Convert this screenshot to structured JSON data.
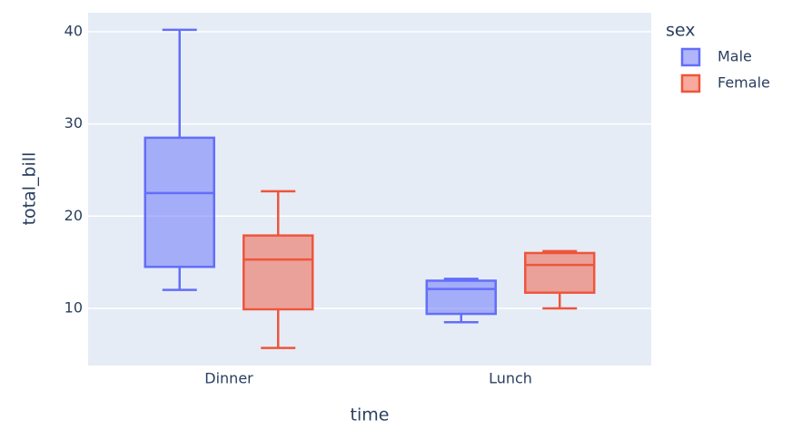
{
  "chart_data": {
    "type": "box",
    "x_label": "time",
    "y_label": "total_bill",
    "categories": [
      "Dinner",
      "Lunch"
    ],
    "legend_title": "sex",
    "series": [
      {
        "name": "Male",
        "color": "#636efa",
        "boxes": [
          {
            "low": 12.0,
            "q1": 14.5,
            "median": 22.5,
            "q3": 28.5,
            "high": 40.2
          },
          {
            "low": 8.5,
            "q1": 9.4,
            "median": 12.1,
            "q3": 13.0,
            "high": 13.2
          }
        ]
      },
      {
        "name": "Female",
        "color": "#ef553b",
        "boxes": [
          {
            "low": 5.7,
            "q1": 9.9,
            "median": 15.3,
            "q3": 17.9,
            "high": 22.7
          },
          {
            "low": 10.0,
            "q1": 11.7,
            "median": 14.7,
            "q3": 16.0,
            "high": 16.2
          }
        ]
      }
    ],
    "ylim": [
      3.8,
      42.06
    ],
    "yticks": [
      10,
      20,
      30,
      40
    ],
    "grid": true,
    "legend": "right"
  }
}
